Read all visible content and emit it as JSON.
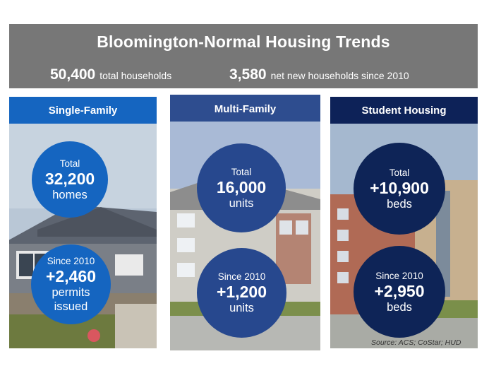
{
  "header": {
    "title": "Bloomington-Normal Housing Trends",
    "stat1": {
      "value": "50,400",
      "label": "total households"
    },
    "stat2": {
      "value": "3,580",
      "label": "net new households since 2010"
    }
  },
  "panels": [
    {
      "title": "Single-Family",
      "total": {
        "pre": "Total",
        "value": "32,200",
        "unit": "homes"
      },
      "since": {
        "pre": "Since 2010",
        "value": "+2,460",
        "unit1": "permits",
        "unit2": "issued"
      }
    },
    {
      "title": "Multi-Family",
      "total": {
        "pre": "Total",
        "value": "16,000",
        "unit": "units"
      },
      "since": {
        "pre": "Since 2010",
        "value": "+1,200",
        "unit1": "units"
      }
    },
    {
      "title": "Student Housing",
      "total": {
        "pre": "Total",
        "value": "+10,900",
        "unit": "beds"
      },
      "since": {
        "pre": "Since 2010",
        "value": "+2,950",
        "unit1": "beds"
      }
    }
  ],
  "source": "Source: ACS; CoStar; HUD",
  "colors": {
    "header_bg": "#777777",
    "single_blue": "#1565c0",
    "multi_blue": "#2e4d8f",
    "student_navy": "#0d2258"
  }
}
